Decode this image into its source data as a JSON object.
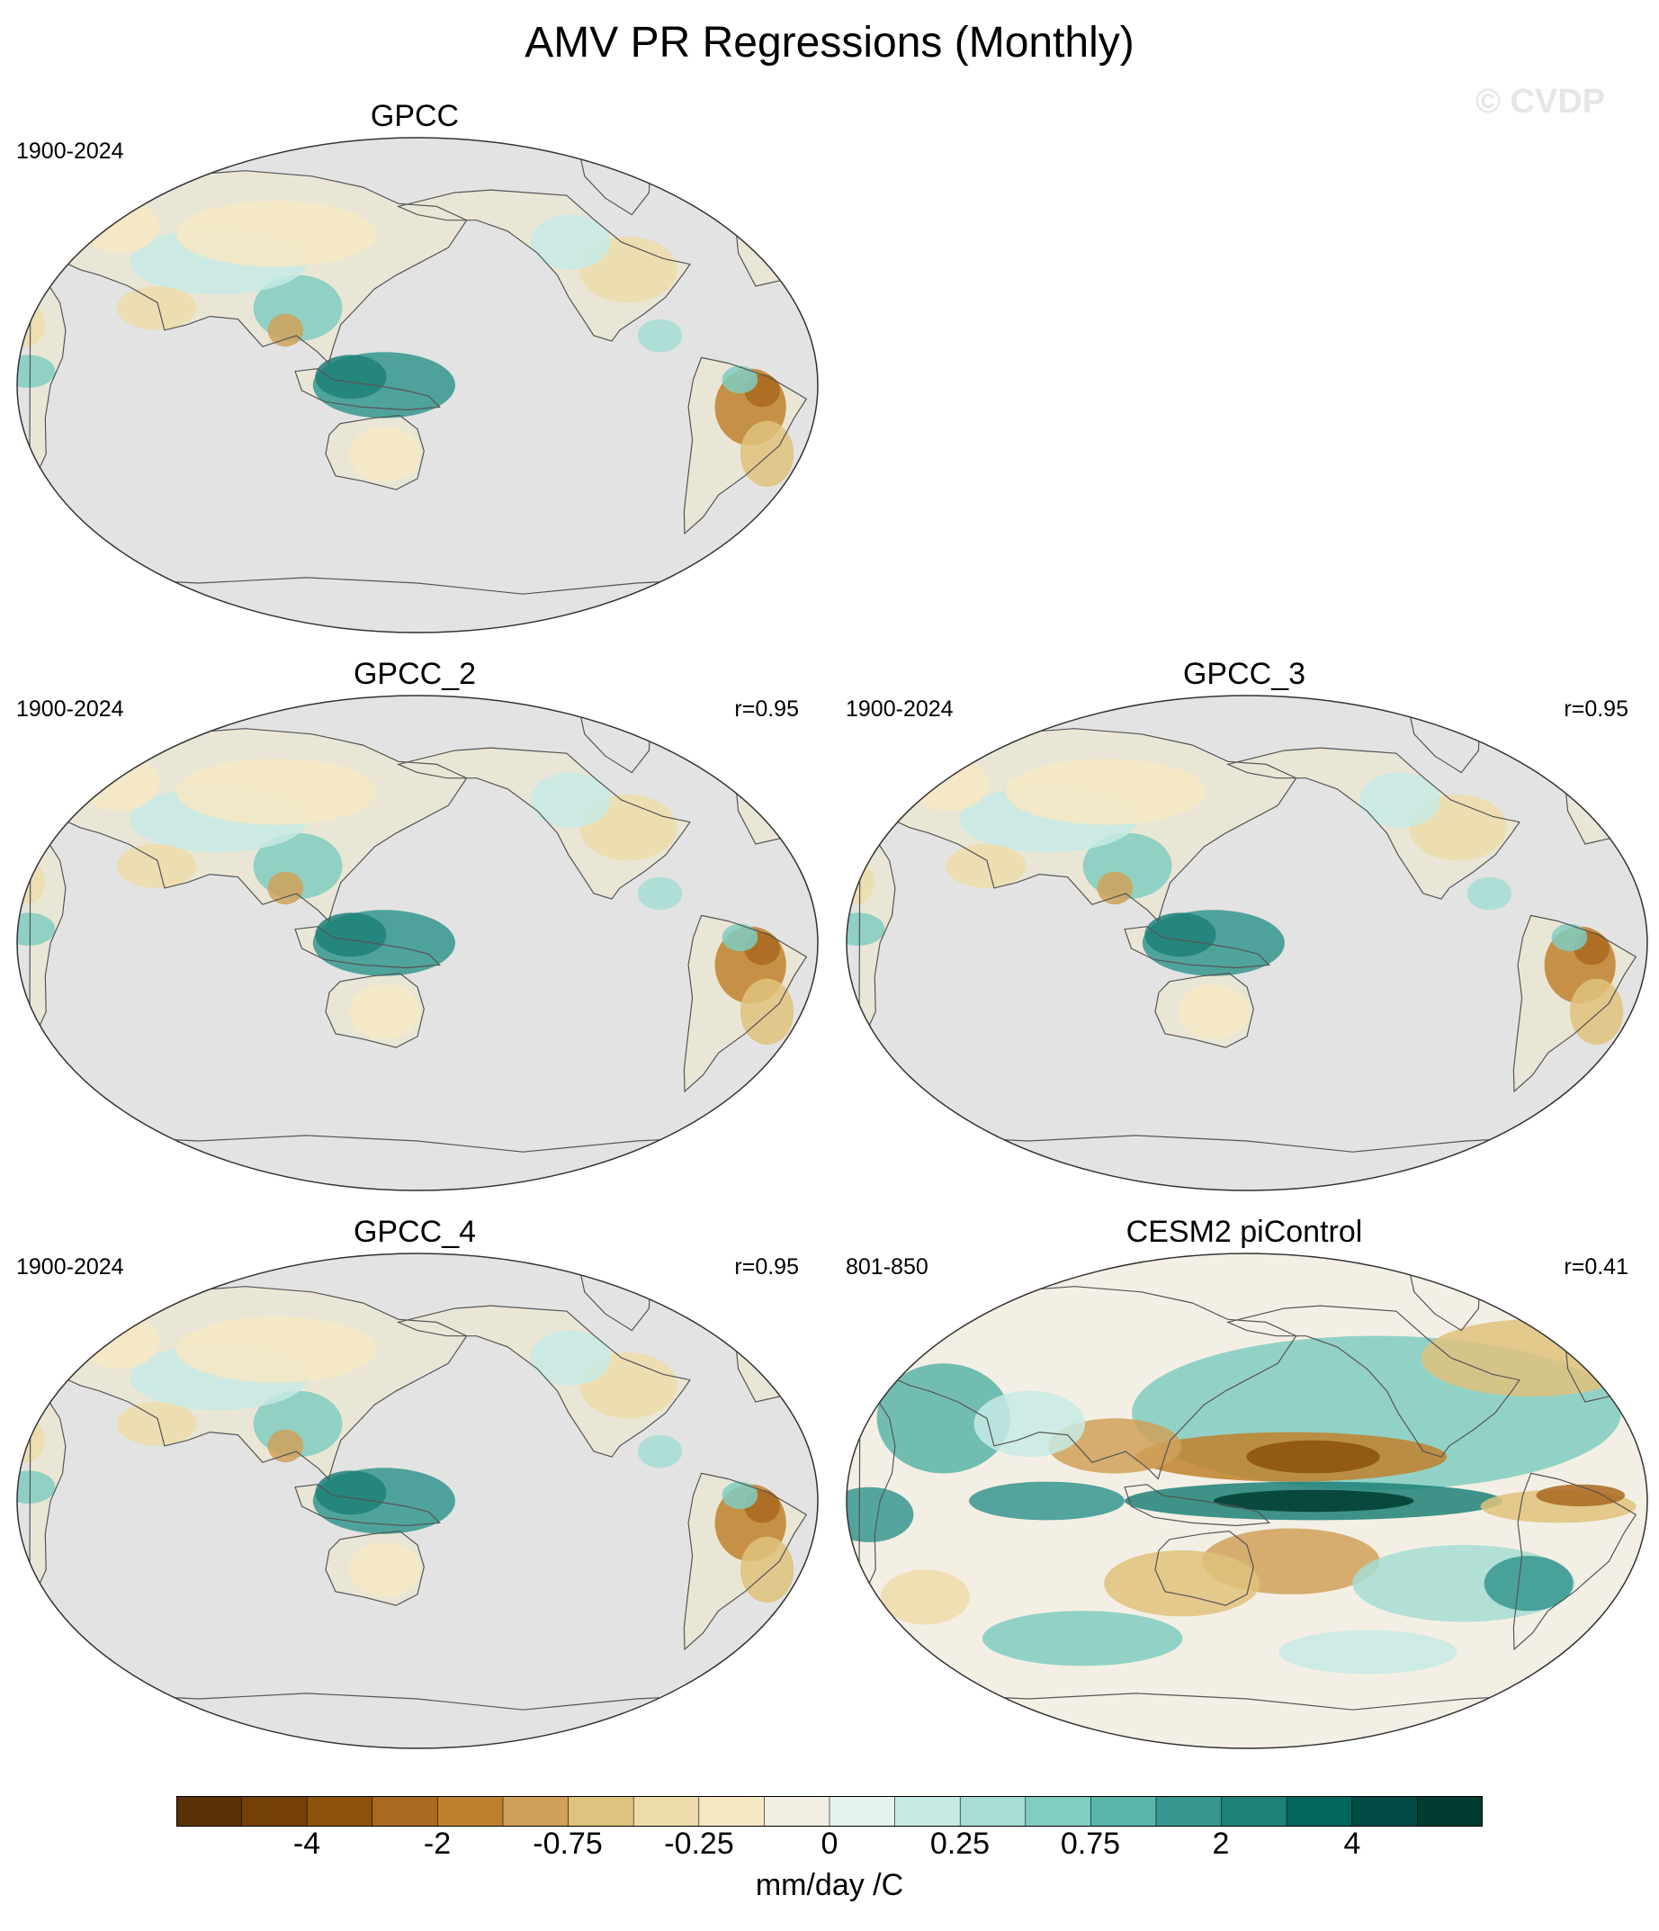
{
  "figure": {
    "title": "AMV PR Regressions (Monthly)",
    "watermark": "© CVDP"
  },
  "panels": [
    {
      "name": "GPCC",
      "years": "1900-2024",
      "corr": "",
      "pattern": "obs"
    },
    {
      "name": "GPCC_2",
      "years": "1900-2024",
      "corr": "r=0.95",
      "pattern": "obs"
    },
    {
      "name": "GPCC_3",
      "years": "1900-2024",
      "corr": "r=0.95",
      "pattern": "obs"
    },
    {
      "name": "GPCC_4",
      "years": "1900-2024",
      "corr": "r=0.95",
      "pattern": "obs"
    },
    {
      "name": "CESM2 piControl",
      "years": "801-850",
      "corr": "r=0.41",
      "pattern": "model"
    }
  ],
  "colorbar": {
    "units": "mm/day /C",
    "colors": [
      "#5a3206",
      "#744008",
      "#8c510a",
      "#a9691f",
      "#bf812d",
      "#d0a15a",
      "#dfc27d",
      "#eddcaa",
      "#f6e8c3",
      "#f4efe4",
      "#e6f2ef",
      "#c7eae5",
      "#a6ddd4",
      "#80cdc1",
      "#5ab4a8",
      "#35978f",
      "#1d8178",
      "#01665e",
      "#014b44",
      "#003c30"
    ],
    "tick_labels": [
      "-4",
      "-2",
      "-0.75",
      "-0.25",
      "0",
      "0.25",
      "0.75",
      "2",
      "4"
    ]
  },
  "colors": {
    "ocean_mask": "#e3e3e3",
    "coastline": "#555555"
  }
}
